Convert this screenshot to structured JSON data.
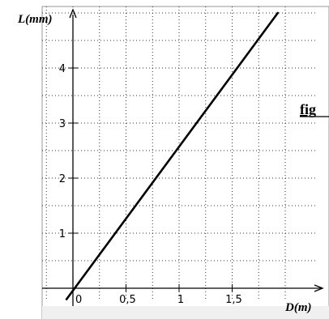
{
  "chart_data": {
    "type": "line",
    "xlabel": "D(m)",
    "ylabel": "L(mm)",
    "x_tick_labels": [
      {
        "value": 0,
        "label": "0"
      },
      {
        "value": 0.5,
        "label": "0,5"
      },
      {
        "value": 1,
        "label": "1"
      },
      {
        "value": 1.5,
        "label": "1,5"
      }
    ],
    "y_tick_labels": [
      {
        "value": 1,
        "label": "1"
      },
      {
        "value": 2,
        "label": "2"
      },
      {
        "value": 3,
        "label": "3"
      },
      {
        "value": 4,
        "label": "4"
      }
    ],
    "xlim": [
      -0.1,
      2.0
    ],
    "ylim": [
      -0.25,
      5.0
    ],
    "grid": true,
    "series": [
      {
        "x": [
          -0.06,
          1.93
        ],
        "y": [
          -0.2,
          5.0
        ]
      }
    ]
  },
  "figure_label": "fig",
  "colors": {
    "background": "#ffffff",
    "grid": "#333333",
    "line": "#000000",
    "panel_border": "#9a9a9a",
    "panel_bg": "#f0f0f0"
  }
}
